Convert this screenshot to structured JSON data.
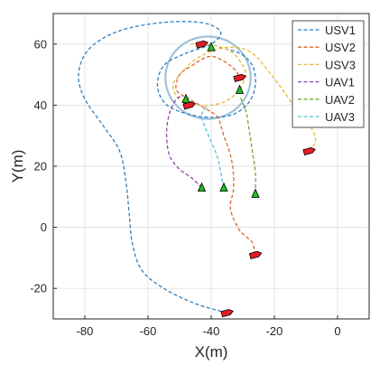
{
  "chart_data": {
    "type": "line",
    "xlabel": "X(m)",
    "ylabel": "Y(m)",
    "xlim": [
      -90,
      10
    ],
    "ylim": [
      -30,
      70
    ],
    "xticks": [
      -80,
      -60,
      -40,
      -20,
      0
    ],
    "yticks": [
      -20,
      0,
      20,
      40,
      60
    ],
    "legend_position": "top-right",
    "circle": {
      "center": [
        -41,
        49
      ],
      "radius": 13.5,
      "color": "#9ec2dc"
    },
    "series": [
      {
        "name": "USV1",
        "color": "#2f7ebf",
        "points": [
          [
            -35,
            -28
          ],
          [
            -45,
            -25
          ],
          [
            -55,
            -20
          ],
          [
            -62,
            -14
          ],
          [
            -65,
            -5
          ],
          [
            -66,
            5
          ],
          [
            -67,
            15
          ],
          [
            -69,
            25
          ],
          [
            -74,
            33
          ],
          [
            -80,
            42
          ],
          [
            -82,
            50
          ],
          [
            -79,
            58
          ],
          [
            -70,
            64
          ],
          [
            -56,
            67
          ],
          [
            -43,
            67
          ],
          [
            -37,
            64
          ],
          [
            -40,
            60
          ],
          [
            -48,
            57
          ],
          [
            -55,
            53
          ],
          [
            -57,
            46
          ],
          [
            -54,
            40
          ],
          [
            -47,
            37
          ],
          [
            -40,
            36
          ],
          [
            -33,
            37
          ],
          [
            -28,
            41
          ],
          [
            -26,
            47
          ],
          [
            -27,
            53
          ],
          [
            -31,
            57
          ],
          [
            -38,
            59
          ]
        ],
        "end": [
          -35,
          -28
        ],
        "end_color": "#e31e24"
      },
      {
        "name": "USV2",
        "color": "#e2622b",
        "points": [
          [
            -26,
            -9
          ],
          [
            -27,
            -5
          ],
          [
            -29,
            -3
          ],
          [
            -31,
            -1
          ],
          [
            -33,
            3
          ],
          [
            -34,
            7
          ],
          [
            -33,
            12
          ],
          [
            -33,
            18
          ],
          [
            -34,
            24
          ],
          [
            -36,
            30
          ],
          [
            -38,
            36
          ],
          [
            -42,
            39
          ],
          [
            -47,
            42
          ],
          [
            -51,
            45
          ],
          [
            -50,
            50
          ],
          [
            -46,
            53
          ],
          [
            -43,
            55
          ],
          [
            -40,
            56
          ],
          [
            -37,
            55
          ],
          [
            -34,
            53
          ],
          [
            -32,
            51
          ],
          [
            -31,
            49
          ]
        ],
        "end": [
          -26,
          -9
        ],
        "end_color": "#e31e24"
      },
      {
        "name": "USV3",
        "color": "#e8b83a",
        "points": [
          [
            -9,
            25
          ],
          [
            -7,
            28
          ],
          [
            -8,
            32
          ],
          [
            -12,
            37
          ],
          [
            -16,
            43
          ],
          [
            -21,
            50
          ],
          [
            -27,
            57
          ],
          [
            -33,
            59
          ],
          [
            -39,
            58
          ],
          [
            -45,
            55
          ],
          [
            -49,
            51
          ],
          [
            -52,
            47
          ],
          [
            -51,
            43
          ],
          [
            -48,
            41
          ],
          [
            -44,
            40
          ],
          [
            -40,
            40
          ],
          [
            -36,
            41
          ],
          [
            -33,
            43
          ],
          [
            -31,
            45
          ],
          [
            -30,
            47
          ],
          [
            -29,
            50
          ],
          [
            -30,
            53
          ],
          [
            -33,
            57
          ],
          [
            -37,
            59
          ],
          [
            -42,
            60
          ],
          [
            -46,
            60
          ],
          [
            -47,
            59
          ]
        ],
        "end": [
          -9,
          25
        ],
        "end_color": "#e31e24"
      },
      {
        "name": "UAV1",
        "color": "#8e44ad",
        "points": [
          [
            -43,
            13
          ],
          [
            -46,
            16
          ],
          [
            -50,
            19
          ],
          [
            -53,
            23
          ],
          [
            -54,
            28
          ],
          [
            -54,
            33
          ],
          [
            -53,
            38
          ],
          [
            -51,
            42
          ],
          [
            -49,
            43
          ]
        ],
        "end": [
          -43,
          13
        ],
        "end_color": "#20c020"
      },
      {
        "name": "UAV2",
        "color": "#74a833",
        "points": [
          [
            -26,
            11
          ],
          [
            -26,
            18
          ],
          [
            -27,
            25
          ],
          [
            -28,
            32
          ],
          [
            -29,
            38
          ],
          [
            -31,
            43
          ]
        ],
        "end": [
          -26,
          11
        ],
        "end_color": "#20c020"
      },
      {
        "name": "UAV3",
        "color": "#56c1d8",
        "points": [
          [
            -36,
            13
          ],
          [
            -37,
            18
          ],
          [
            -38,
            23
          ],
          [
            -40,
            28
          ],
          [
            -42,
            33
          ],
          [
            -43,
            37
          ],
          [
            -41,
            40
          ]
        ],
        "end": [
          -36,
          13
        ],
        "end_color": "#20c020"
      }
    ],
    "markers": [
      {
        "kind": "boat",
        "color": "#e31e24",
        "at": [
          -43,
          60
        ]
      },
      {
        "kind": "boat",
        "color": "#e31e24",
        "at": [
          -47,
          40
        ]
      },
      {
        "kind": "boat",
        "color": "#e31e24",
        "at": [
          -31,
          49
        ]
      },
      {
        "kind": "arrow",
        "color": "#20c020",
        "at": [
          -48,
          42
        ]
      },
      {
        "kind": "arrow",
        "color": "#20c020",
        "at": [
          -31,
          45
        ]
      },
      {
        "kind": "arrow",
        "color": "#20c020",
        "at": [
          -40,
          59
        ]
      }
    ]
  }
}
